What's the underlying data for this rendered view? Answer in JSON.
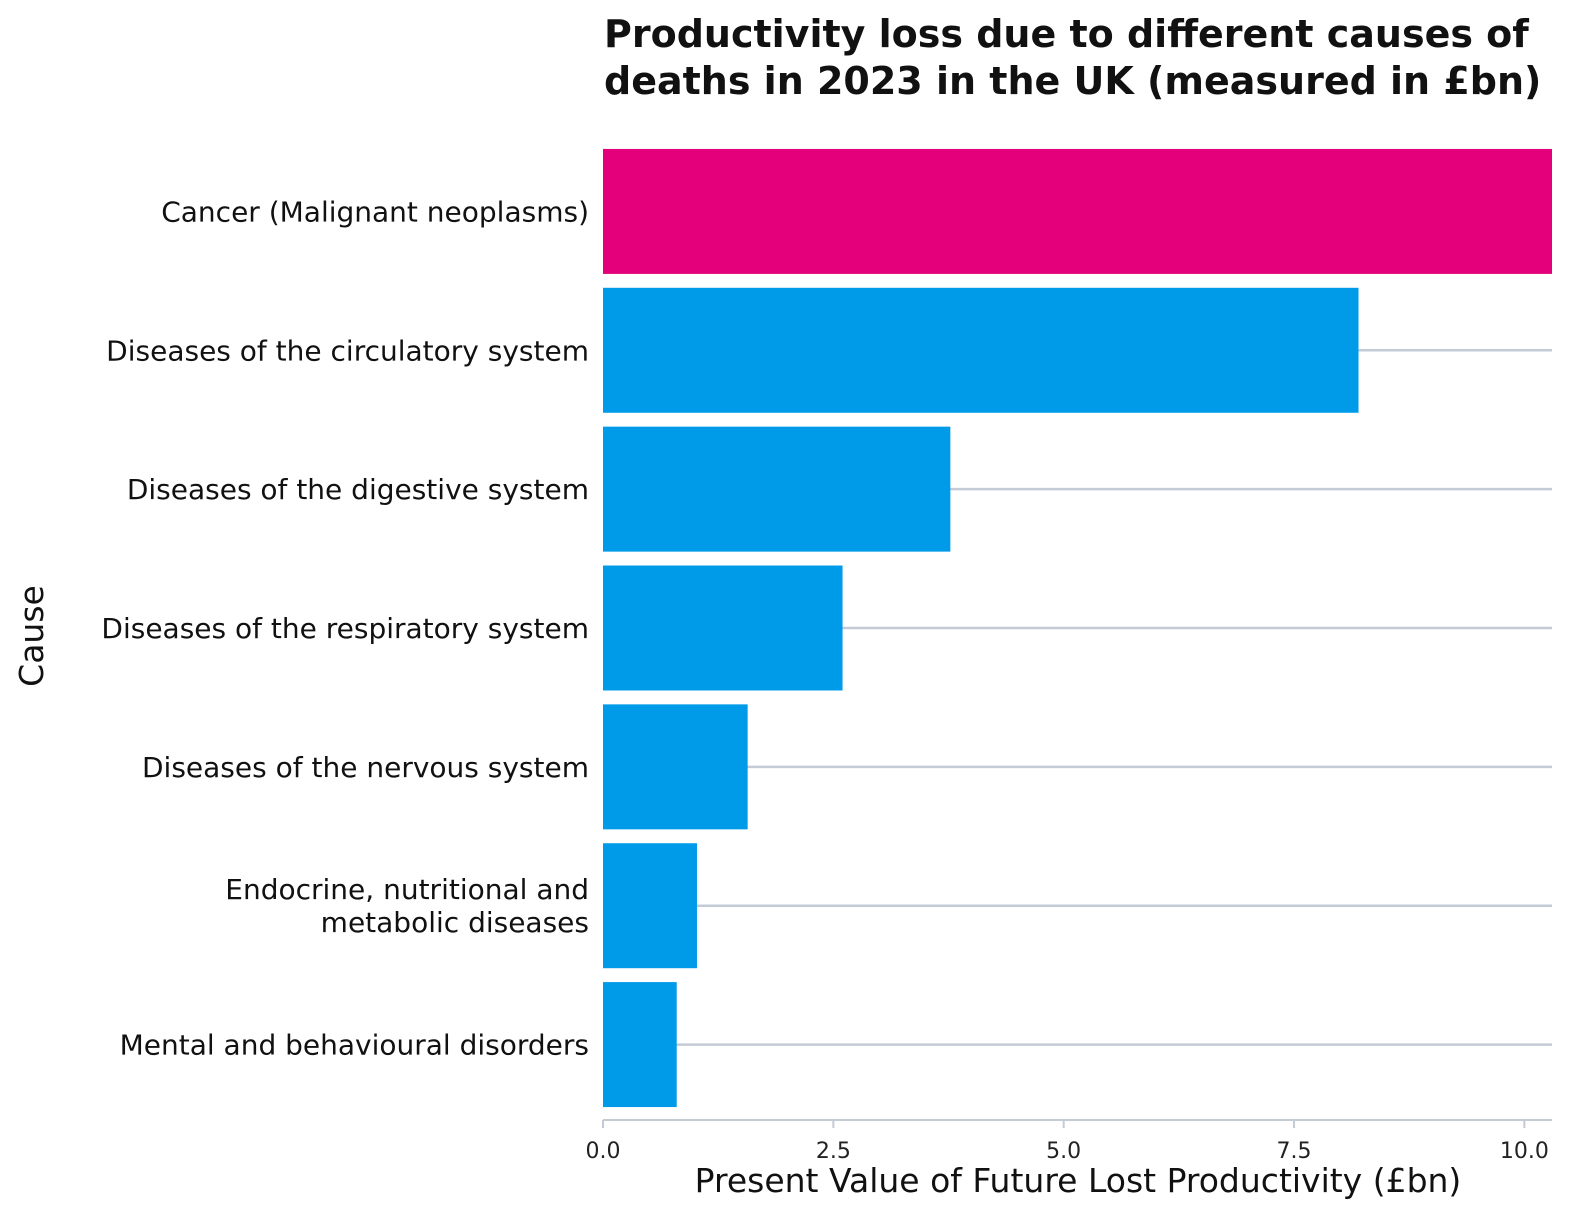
{
  "chart_data": {
    "type": "bar",
    "orientation": "horizontal",
    "title": [
      "Productivity loss due to different causes of",
      "deaths in 2023 in the UK (measured in £bn)"
    ],
    "xlabel": "Present Value of Future Lost Productivity (£bn)",
    "ylabel": "Cause",
    "xlim": [
      0,
      10.3
    ],
    "xticks": [
      0,
      2.5,
      5,
      7.5,
      10
    ],
    "xtick_labels": [
      "0.0",
      "2.5",
      "5.0",
      "7.5",
      "10.0"
    ],
    "grid": "horizontal lines at each category",
    "categories": [
      [
        "Cancer (Malignant neoplasms)"
      ],
      [
        "Diseases of the circulatory system"
      ],
      [
        "Diseases of the digestive system"
      ],
      [
        "Diseases of the respiratory system"
      ],
      [
        "Diseases of the nervous system"
      ],
      [
        "Endocrine, nutritional and",
        "metabolic diseases"
      ],
      [
        "Mental and behavioural disorders"
      ]
    ],
    "values": [
      10.3,
      8.2,
      3.77,
      2.6,
      1.57,
      1.02,
      0.8
    ],
    "colors": [
      "#e3007a",
      "#009be8",
      "#009be8",
      "#009be8",
      "#009be8",
      "#009be8",
      "#009be8"
    ]
  }
}
